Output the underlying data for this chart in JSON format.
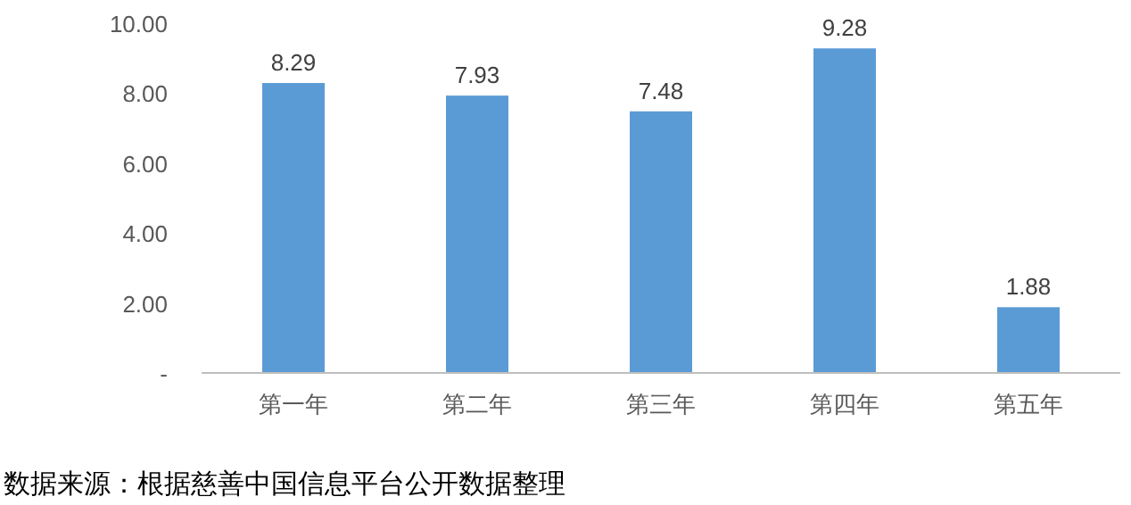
{
  "chart_data": {
    "type": "bar",
    "categories": [
      "第一年",
      "第二年",
      "第三年",
      "第四年",
      "第五年"
    ],
    "values": [
      8.29,
      7.93,
      7.48,
      9.28,
      1.88
    ],
    "color": "#5b9bd5",
    "ylim": [
      0,
      10
    ],
    "yticks": [
      {
        "value": 0,
        "label": "-"
      },
      {
        "value": 2,
        "label": "2.00"
      },
      {
        "value": 4,
        "label": "4.00"
      },
      {
        "value": 6,
        "label": "6.00"
      },
      {
        "value": 8,
        "label": "8.00"
      },
      {
        "value": 10,
        "label": "10.00"
      }
    ],
    "data_labels": true,
    "annotations": [
      "数据来源：根据慈善中国信息平台公开数据整理"
    ]
  }
}
